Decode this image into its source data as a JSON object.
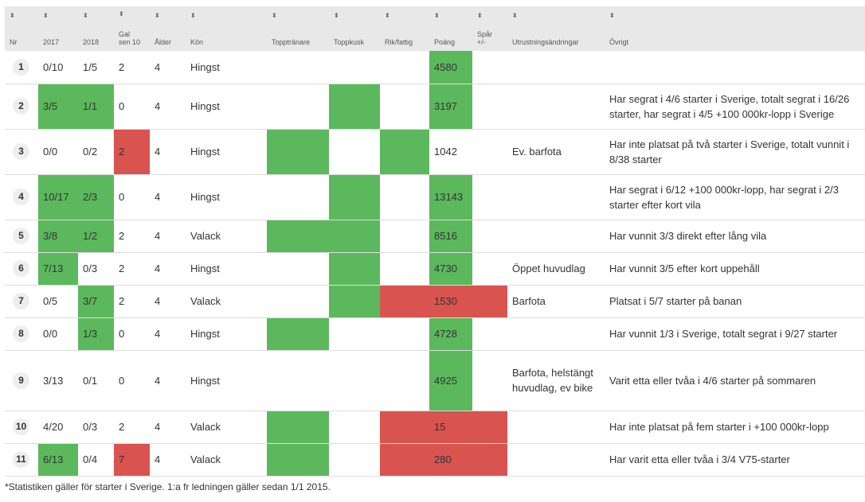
{
  "headers": [
    "Nr",
    "2017",
    "2018",
    "Gal sen 10",
    "Ålder",
    "Kön",
    "Topptränare",
    "Toppkusk",
    "Rik/fattig",
    "Poäng",
    "Spår +/-",
    "Utrustningsändringar",
    "Övrigt"
  ],
  "rows": [
    {
      "nr": "1",
      "c2017": "0/10",
      "c2018": "1/5",
      "gal": "2",
      "alder": "4",
      "kon": "Hingst",
      "poang": "4580",
      "utr": "",
      "ovr": ""
    },
    {
      "nr": "2",
      "c2017": "3/5",
      "c2018": "1/1",
      "gal": "0",
      "alder": "4",
      "kon": "Hingst",
      "poang": "3197",
      "utr": "",
      "ovr": "Har segrat i 4/6 starter i Sverige, totalt segrat i 16/26 starter, har segrat i 4/5 +100 000kr-lopp i Sverige"
    },
    {
      "nr": "3",
      "c2017": "0/0",
      "c2018": "0/2",
      "gal": "2",
      "alder": "4",
      "kon": "Hingst",
      "poang": "1042",
      "utr": "Ev. barfota",
      "ovr": "Har inte platsat på två starter i Sverige, totalt vunnit i 8/38 starter"
    },
    {
      "nr": "4",
      "c2017": "10/17",
      "c2018": "2/3",
      "gal": "0",
      "alder": "4",
      "kon": "Hingst",
      "poang": "13143",
      "utr": "",
      "ovr": "Har segrat i 6/12 +100 000kr-lopp, har segrat i 2/3 starter efter kort vila"
    },
    {
      "nr": "5",
      "c2017": "3/8",
      "c2018": "1/2",
      "gal": "2",
      "alder": "4",
      "kon": "Valack",
      "poang": "8516",
      "utr": "",
      "ovr": "Har vunnit 3/3 direkt efter lång vila"
    },
    {
      "nr": "6",
      "c2017": "7/13",
      "c2018": "0/3",
      "gal": "2",
      "alder": "4",
      "kon": "Hingst",
      "poang": "4730",
      "utr": "Öppet huvudlag",
      "ovr": "Har vunnit 3/5 efter kort uppehåll"
    },
    {
      "nr": "7",
      "c2017": "0/5",
      "c2018": "3/7",
      "gal": "2",
      "alder": "4",
      "kon": "Valack",
      "poang": "1530",
      "utr": "Barfota",
      "ovr": "Platsat i 5/7 starter på banan"
    },
    {
      "nr": "8",
      "c2017": "0/0",
      "c2018": "1/3",
      "gal": "0",
      "alder": "4",
      "kon": "Hingst",
      "poang": "4728",
      "utr": "",
      "ovr": "Har vunnit 1/3 i Sverige, totalt segrat i 9/27 starter"
    },
    {
      "nr": "9",
      "c2017": "3/13",
      "c2018": "0/1",
      "gal": "0",
      "alder": "4",
      "kon": "Hingst",
      "poang": "4925",
      "utr": "Barfota, helstängt huvudlag, ev bike",
      "ovr": "Varit etta eller tvåa i 4/6 starter på sommaren"
    },
    {
      "nr": "10",
      "c2017": "4/20",
      "c2018": "0/3",
      "gal": "2",
      "alder": "4",
      "kon": "Valack",
      "poang": "15",
      "utr": "",
      "ovr": "Har inte platsat på fem starter i +100 000kr-lopp"
    },
    {
      "nr": "11",
      "c2017": "6/13",
      "c2018": "0/4",
      "gal": "7",
      "alder": "4",
      "kon": "Valack",
      "poang": "280",
      "utr": "",
      "ovr": "Har varit etta eller tvåa i 3/4 V75-starter"
    }
  ],
  "colors": {
    "green": "#5cb85c",
    "red": "#d9534f",
    "header_bg": "#e8e8e8"
  },
  "footnote": "*Statistiken gäller för starter i Sverige. 1:a fr ledningen gäller sedan 1/1 2015."
}
